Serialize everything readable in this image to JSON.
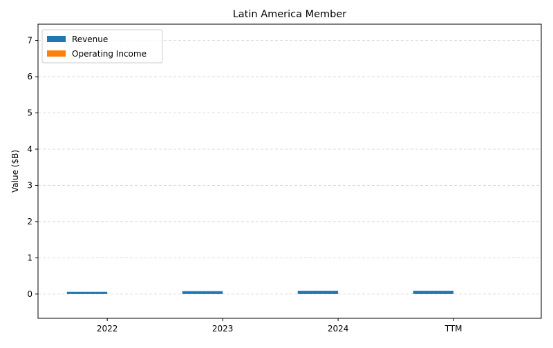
{
  "chart_data": {
    "type": "bar",
    "title": "Latin America Member",
    "xlabel": "",
    "ylabel": "Value ($B)",
    "categories": [
      "2022",
      "2023",
      "2024",
      "TTM"
    ],
    "series": [
      {
        "name": "Revenue",
        "values": [
          0.06,
          0.08,
          0.09,
          0.09
        ],
        "color": "#1f77b4"
      },
      {
        "name": "Operating Income",
        "values": [
          0,
          0,
          0,
          0
        ],
        "color": "#ff7f0e"
      }
    ],
    "ylim": [
      -0.67,
      7.45
    ],
    "yticks": [
      0,
      1,
      2,
      3,
      4,
      5,
      6,
      7
    ],
    "grid": "horizontal dashed",
    "legend_position": "top-left"
  }
}
